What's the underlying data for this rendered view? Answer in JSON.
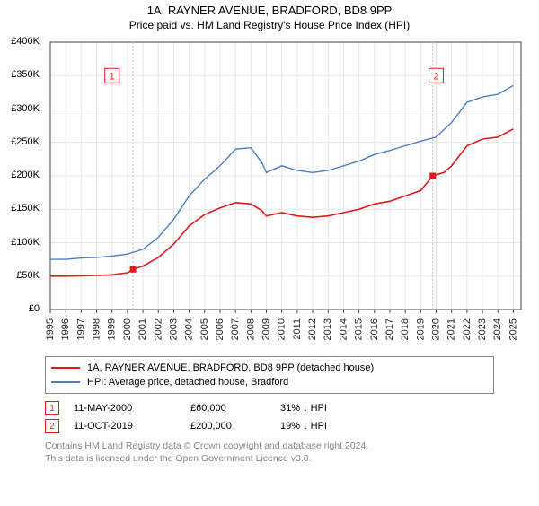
{
  "title": "1A, RAYNER AVENUE, BRADFORD, BD8 9PP",
  "subtitle": "Price paid vs. HM Land Registry's House Price Index (HPI)",
  "chart": {
    "type": "line",
    "background_color": "#ffffff",
    "grid_color": "#e6e6e6",
    "axis_color": "#444444",
    "xlim": [
      1995,
      2025.5
    ],
    "ylim": [
      0,
      400000
    ],
    "yticks": [
      0,
      50000,
      100000,
      150000,
      200000,
      250000,
      300000,
      350000,
      400000
    ],
    "ytick_labels": [
      "£0",
      "£50K",
      "£100K",
      "£150K",
      "£200K",
      "£250K",
      "£300K",
      "£350K",
      "£400K"
    ],
    "xticks": [
      1995,
      1996,
      1997,
      1998,
      1999,
      2000,
      2001,
      2002,
      2003,
      2004,
      2005,
      2006,
      2007,
      2008,
      2009,
      2010,
      2011,
      2012,
      2013,
      2014,
      2015,
      2016,
      2017,
      2018,
      2019,
      2020,
      2021,
      2022,
      2023,
      2024,
      2025
    ],
    "series": [
      {
        "name": "1A, RAYNER AVENUE, BRADFORD, BD8 9PP (detached house)",
        "color": "#e11b1b",
        "line_width": 1.6,
        "data": [
          [
            1995,
            50000
          ],
          [
            1996,
            50000
          ],
          [
            1997,
            50500
          ],
          [
            1998,
            51000
          ],
          [
            1999,
            52000
          ],
          [
            2000,
            55000
          ],
          [
            2000.36,
            60000
          ],
          [
            2001,
            65000
          ],
          [
            2002,
            78000
          ],
          [
            2003,
            98000
          ],
          [
            2004,
            125000
          ],
          [
            2005,
            142000
          ],
          [
            2006,
            152000
          ],
          [
            2007,
            160000
          ],
          [
            2008,
            158000
          ],
          [
            2008.7,
            148000
          ],
          [
            2009,
            140000
          ],
          [
            2010,
            145000
          ],
          [
            2011,
            140000
          ],
          [
            2012,
            138000
          ],
          [
            2013,
            140000
          ],
          [
            2014,
            145000
          ],
          [
            2015,
            150000
          ],
          [
            2016,
            158000
          ],
          [
            2017,
            162000
          ],
          [
            2018,
            170000
          ],
          [
            2019,
            178000
          ],
          [
            2019.78,
            200000
          ],
          [
            2020.5,
            205000
          ],
          [
            2021,
            215000
          ],
          [
            2022,
            245000
          ],
          [
            2023,
            255000
          ],
          [
            2024,
            258000
          ],
          [
            2025,
            270000
          ]
        ]
      },
      {
        "name": "HPI: Average price, detached house, Bradford",
        "color": "#4a7ec8",
        "line_width": 1.4,
        "data": [
          [
            1995,
            75000
          ],
          [
            1996,
            75000
          ],
          [
            1997,
            77000
          ],
          [
            1998,
            78000
          ],
          [
            1999,
            80000
          ],
          [
            2000,
            83000
          ],
          [
            2001,
            90000
          ],
          [
            2002,
            108000
          ],
          [
            2003,
            135000
          ],
          [
            2004,
            170000
          ],
          [
            2005,
            195000
          ],
          [
            2006,
            215000
          ],
          [
            2007,
            240000
          ],
          [
            2008,
            242000
          ],
          [
            2008.7,
            220000
          ],
          [
            2009,
            205000
          ],
          [
            2010,
            215000
          ],
          [
            2011,
            208000
          ],
          [
            2012,
            205000
          ],
          [
            2013,
            208000
          ],
          [
            2014,
            215000
          ],
          [
            2015,
            222000
          ],
          [
            2016,
            232000
          ],
          [
            2017,
            238000
          ],
          [
            2018,
            245000
          ],
          [
            2019,
            252000
          ],
          [
            2020,
            258000
          ],
          [
            2021,
            280000
          ],
          [
            2022,
            310000
          ],
          [
            2023,
            318000
          ],
          [
            2024,
            322000
          ],
          [
            2025,
            335000
          ]
        ]
      }
    ],
    "markers": [
      {
        "id": "1",
        "x": 2000.36,
        "y": 60000,
        "color": "#e11b1b",
        "label_x": 1999,
        "label_y": 350000
      },
      {
        "id": "2",
        "x": 2019.78,
        "y": 200000,
        "color": "#e11b1b",
        "label_x": 2020,
        "label_y": 350000
      }
    ],
    "marker_guide_color": "#f2b0b0",
    "marker_guide_dash": "2,2"
  },
  "legend": {
    "items": [
      {
        "color": "#e11b1b",
        "label": "1A, RAYNER AVENUE, BRADFORD, BD8 9PP (detached house)"
      },
      {
        "color": "#4a7ec8",
        "label": "HPI: Average price, detached house, Bradford"
      }
    ]
  },
  "marker_table": [
    {
      "id": "1",
      "color": "#e11b1b",
      "date": "11-MAY-2000",
      "price": "£60,000",
      "delta": "31% ↓ HPI"
    },
    {
      "id": "2",
      "color": "#e11b1b",
      "date": "11-OCT-2019",
      "price": "£200,000",
      "delta": "19% ↓ HPI"
    }
  ],
  "footnote_line1": "Contains HM Land Registry data © Crown copyright and database right 2024.",
  "footnote_line2": "This data is licensed under the Open Government Licence v3.0.",
  "fontsizes": {
    "title": 13,
    "subtitle": 12,
    "tick": 11,
    "legend": 11,
    "footnote": 10.5
  }
}
